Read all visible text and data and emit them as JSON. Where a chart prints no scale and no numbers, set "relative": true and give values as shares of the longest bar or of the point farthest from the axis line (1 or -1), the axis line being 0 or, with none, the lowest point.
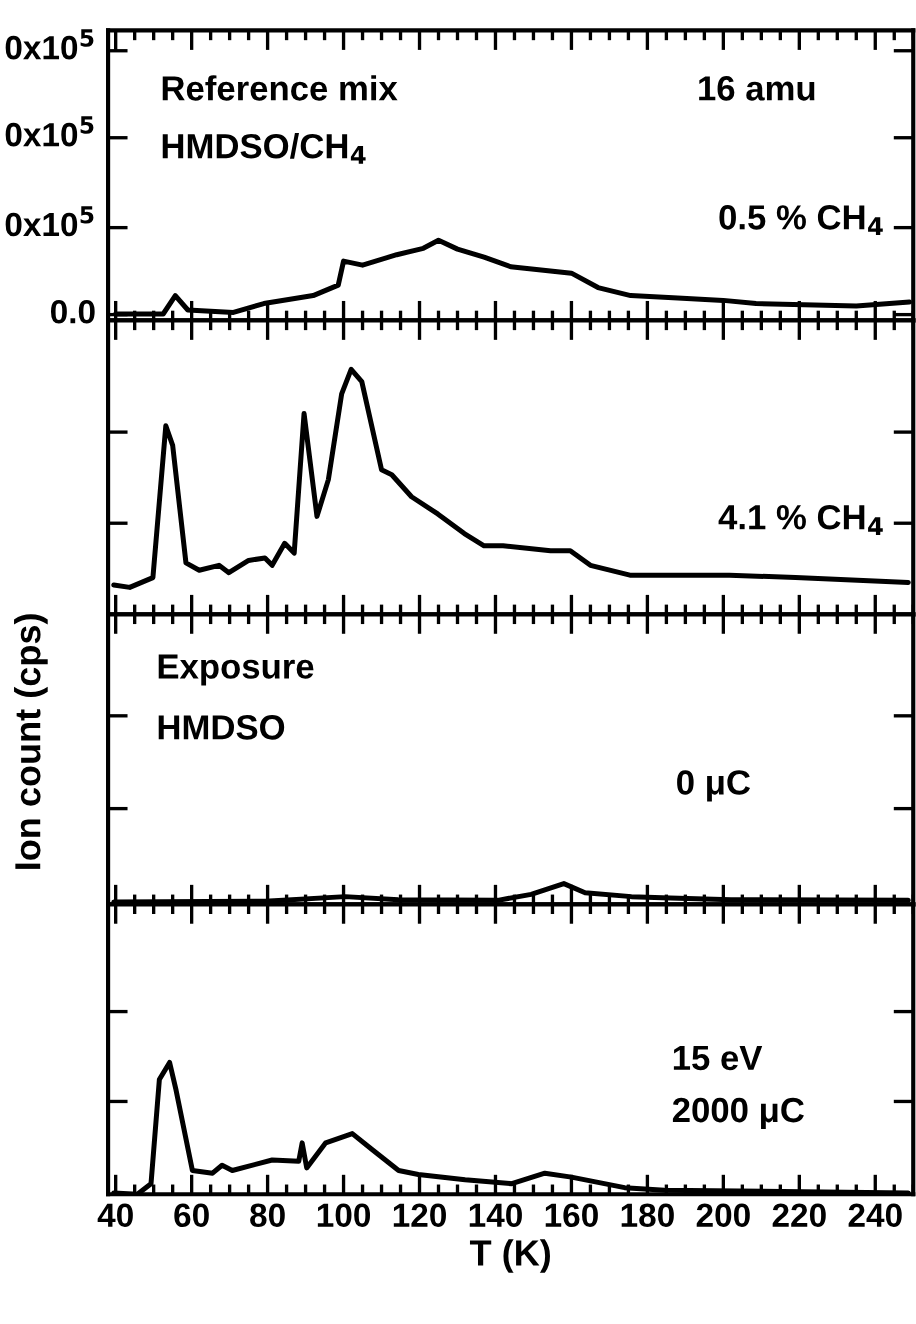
{
  "chart_data": [
    {
      "type": "line",
      "relative": true,
      "xlim": [
        38,
        250
      ],
      "xticks": [
        40,
        60,
        80,
        100,
        120,
        140,
        160,
        180,
        200,
        220,
        240
      ],
      "tick_labels": false,
      "annotations": [
        "Reference mix",
        "HMDSO/CH$_{4}$",
        "16 amu",
        "0.5 % CH$_{4}$",
        "0.0",
        "0x10$^{5}$",
        "0x10$^{5}$",
        "0x10$^{5}$"
      ],
      "series": [
        {
          "color": "#000000",
          "x": [
            40,
            52.5,
            55.7,
            59,
            71,
            79,
            92,
            98.6,
            100,
            105,
            114,
            121,
            125,
            130,
            137,
            144,
            160,
            167,
            175.6,
            188,
            200,
            208.6,
            235,
            249
          ],
          "values": [
            0.08,
            0.08,
            0.31,
            0.13,
            0.1,
            0.21,
            0.31,
            0.44,
            0.74,
            0.69,
            0.82,
            0.9,
            1.0,
            0.89,
            0.79,
            0.67,
            0.59,
            0.41,
            0.31,
            0.28,
            0.25,
            0.21,
            0.18,
            0.23
          ]
        }
      ]
    },
    {
      "type": "line",
      "relative": true,
      "xlim": [
        38,
        250
      ],
      "xticks": [
        40,
        60,
        80,
        100,
        120,
        140,
        160,
        180,
        200,
        220,
        240
      ],
      "tick_labels": false,
      "annotations": [
        "4.1 % CH$_{4}$"
      ],
      "series": [
        {
          "color": "#000000",
          "x": [
            39.5,
            43.7,
            49.8,
            53.2,
            55,
            58.5,
            62,
            67.2,
            69.8,
            75,
            79.3,
            81.2,
            84.5,
            87,
            89.6,
            93,
            96,
            99.5,
            102,
            104.8,
            110,
            112.7,
            117.9,
            124.8,
            131.8,
            137,
            142,
            154.5,
            159.7,
            165,
            175.4,
            201.6,
            219,
            248.7
          ],
          "values": [
            0.12,
            0.11,
            0.15,
            0.77,
            0.69,
            0.21,
            0.18,
            0.2,
            0.17,
            0.22,
            0.23,
            0.2,
            0.29,
            0.25,
            0.82,
            0.4,
            0.55,
            0.9,
            1.0,
            0.95,
            0.59,
            0.57,
            0.48,
            0.41,
            0.33,
            0.28,
            0.28,
            0.26,
            0.26,
            0.2,
            0.16,
            0.16,
            0.15,
            0.13
          ]
        }
      ]
    },
    {
      "type": "line",
      "relative": true,
      "xlim": [
        38,
        250
      ],
      "xticks": [
        40,
        60,
        80,
        100,
        120,
        140,
        160,
        180,
        200,
        220,
        240
      ],
      "tick_labels": false,
      "ylabel": "Ion count (cps)",
      "annotations": [
        "Exposure",
        "HMDSO",
        "0 μC"
      ],
      "series": [
        {
          "color": "#000000",
          "x": [
            39.5,
            79.4,
            100.4,
            114.4,
            140.6,
            149.4,
            158,
            163.6,
            175.8,
            186,
            202,
            248.7
          ],
          "values": [
            0.11,
            0.15,
            0.37,
            0.22,
            0.19,
            0.48,
            1.0,
            0.56,
            0.37,
            0.3,
            0.22,
            0.19
          ]
        }
      ]
    },
    {
      "type": "line",
      "relative": true,
      "xlim": [
        38,
        250
      ],
      "xticks": [
        40,
        60,
        80,
        100,
        120,
        140,
        160,
        180,
        200,
        220,
        240
      ],
      "tick_labels": "x",
      "xlabel": "T (K)",
      "annotations": [
        "15 eV",
        "2000 μC"
      ],
      "series": [
        {
          "color": "#000000",
          "x": [
            39.5,
            45.7,
            49.3,
            51.5,
            54.2,
            55.9,
            60.2,
            65.5,
            68,
            70.7,
            81.2,
            88.2,
            89.1,
            90.3,
            95.3,
            102.3,
            107.5,
            114.5,
            119.7,
            132,
            144.3,
            153,
            160,
            174,
            184.5,
            248.7
          ],
          "values": [
            0.01,
            0.0,
            0.08,
            0.87,
            1.0,
            0.79,
            0.18,
            0.16,
            0.22,
            0.18,
            0.26,
            0.25,
            0.39,
            0.2,
            0.39,
            0.46,
            0.34,
            0.18,
            0.15,
            0.11,
            0.08,
            0.16,
            0.13,
            0.05,
            0.03,
            0.01
          ]
        }
      ]
    }
  ]
}
